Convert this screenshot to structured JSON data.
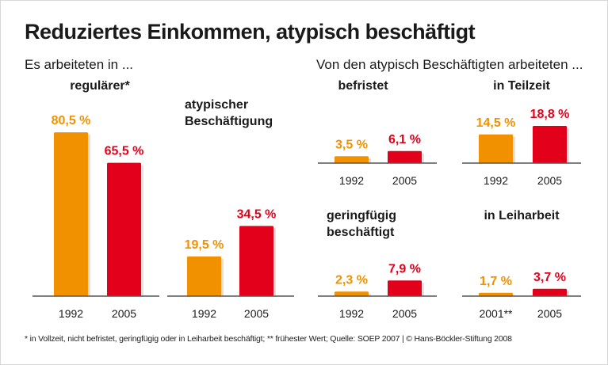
{
  "title": "Reduziertes Einkommen, atypisch beschäftigt",
  "sections": {
    "left": "Es arbeiteten in ...",
    "right": "Von den atypisch Beschäftigten arbeiteten ..."
  },
  "footnote": "* in Vollzeit, nicht befristet, geringfügig oder in Leiharbeit beschäftigt; ** frühester Wert; Quelle: SOEP 2007 | © Hans-Böckler-Stiftung 2008",
  "colors": {
    "first": "#f29100",
    "second": "#e2001a",
    "axis": "#555555"
  },
  "chart_data": [
    {
      "type": "bar",
      "title": [
        "regulärer*"
      ],
      "categories": [
        "1992",
        "2005"
      ],
      "values": [
        80.5,
        65.5
      ],
      "labels": [
        "80,5 %",
        "65,5 %"
      ]
    },
    {
      "type": "bar",
      "title": [
        "atypischer",
        "Beschäftigung"
      ],
      "categories": [
        "1992",
        "2005"
      ],
      "values": [
        19.5,
        34.5
      ],
      "labels": [
        "19,5 %",
        "34,5 %"
      ]
    },
    {
      "type": "bar",
      "title": [
        "befristet"
      ],
      "categories": [
        "1992",
        "2005"
      ],
      "values": [
        3.5,
        6.1
      ],
      "labels": [
        "3,5 %",
        "6,1 %"
      ]
    },
    {
      "type": "bar",
      "title": [
        "in Teilzeit"
      ],
      "categories": [
        "1992",
        "2005"
      ],
      "values": [
        14.5,
        18.8
      ],
      "labels": [
        "14,5 %",
        "18,8 %"
      ]
    },
    {
      "type": "bar",
      "title": [
        "geringfügig",
        "beschäftigt"
      ],
      "categories": [
        "1992",
        "2005"
      ],
      "values": [
        2.3,
        7.9
      ],
      "labels": [
        "2,3 %",
        "7,9 %"
      ]
    },
    {
      "type": "bar",
      "title": [
        "in Leiharbeit"
      ],
      "categories": [
        "2001**",
        "2005"
      ],
      "values": [
        1.7,
        3.7
      ],
      "labels": [
        "1,7 %",
        "3,7 %"
      ]
    }
  ]
}
